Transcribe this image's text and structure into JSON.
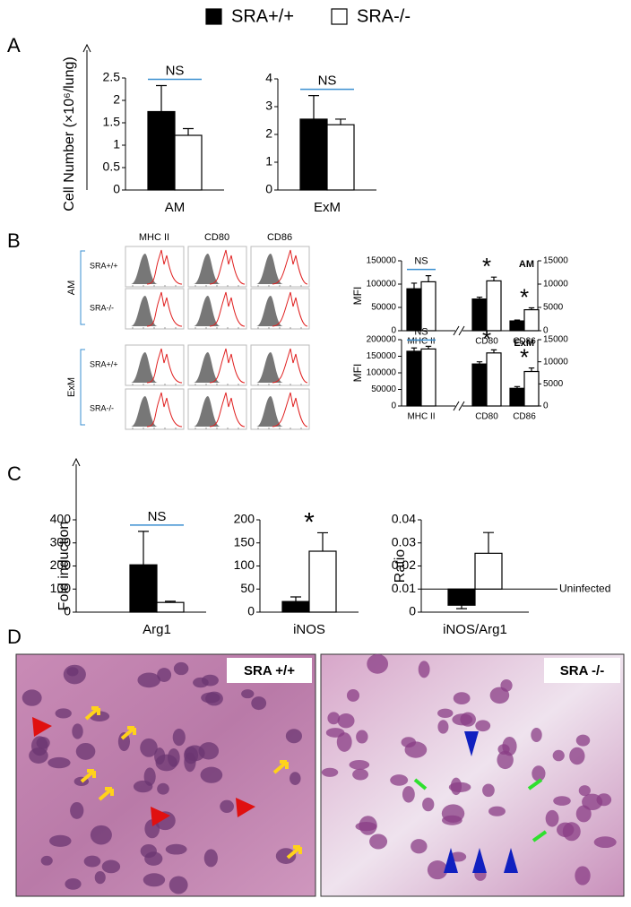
{
  "legend": [
    {
      "name": "SRA+/+",
      "color": "#000000"
    },
    {
      "name": "SRA-/-",
      "color": "#ffffff"
    }
  ],
  "panels": [
    "A",
    "B",
    "C",
    "D"
  ],
  "flow": {
    "columns": [
      "MHC II",
      "CD80",
      "CD86"
    ],
    "groups": [
      {
        "name": "AM",
        "rows": [
          "SRA+/+",
          "SRA-/-"
        ]
      },
      {
        "name": "ExM",
        "rows": [
          "SRA+/+",
          "SRA-/-"
        ]
      }
    ]
  },
  "micrographs": [
    {
      "label": "SRA +/+"
    },
    {
      "label": "SRA -/-"
    }
  ],
  "chart_data": [
    {
      "type": "bar",
      "ylabel": "Cell Number (×10⁶/lung)",
      "categories": [
        "AM"
      ],
      "series": [
        {
          "color": "#000000",
          "values": [
            1.75
          ],
          "errors": [
            0.58
          ]
        },
        {
          "color": "#ffffff",
          "values": [
            1.22
          ],
          "errors": [
            0.15
          ]
        }
      ],
      "ylim": [
        0,
        2.5
      ],
      "yticks": [
        0,
        0.5,
        1,
        1.5,
        2,
        2.5
      ],
      "annotations": [
        {
          "text": "NS",
          "underline": "#3a8fd0"
        }
      ]
    },
    {
      "type": "bar",
      "categories": [
        "ExM"
      ],
      "series": [
        {
          "color": "#000000",
          "values": [
            2.55
          ],
          "errors": [
            0.85
          ]
        },
        {
          "color": "#ffffff",
          "values": [
            2.35
          ],
          "errors": [
            0.2
          ]
        }
      ],
      "ylim": [
        0,
        4
      ],
      "yticks": [
        0,
        1,
        2,
        3,
        4
      ],
      "annotations": [
        {
          "text": "NS",
          "underline": "#3a8fd0"
        }
      ]
    },
    {
      "type": "bar",
      "ylabel": "MFI",
      "label": "AM",
      "categories": [
        "MHC II",
        "CD80",
        "CD86"
      ],
      "series": [
        {
          "color": "#000000",
          "values": [
            90000,
            null,
            null
          ],
          "errors": [
            12000,
            null,
            null
          ]
        },
        {
          "color": "#ffffff",
          "values": [
            105000,
            null,
            null
          ],
          "errors": [
            13000,
            null,
            null
          ]
        },
        {
          "color": "#000000",
          "axis": "y2",
          "values": [
            null,
            6800,
            2100
          ],
          "errors": [
            null,
            400,
            200
          ]
        },
        {
          "color": "#ffffff",
          "axis": "y2",
          "values": [
            null,
            10700,
            4500
          ],
          "errors": [
            null,
            800,
            400
          ]
        }
      ],
      "ylim": [
        0,
        150000
      ],
      "yticks": [
        0,
        50000,
        100000,
        150000
      ],
      "y2lim": [
        0,
        15000
      ],
      "y2ticks": [
        0,
        5000,
        10000,
        15000
      ],
      "annotations": [
        {
          "text": "NS",
          "underline": "#3a8fd0"
        },
        {
          "text": "*"
        },
        {
          "text": "*"
        }
      ]
    },
    {
      "type": "bar",
      "ylabel": "MFI",
      "label": "ExM",
      "categories": [
        "MHC II",
        "CD80",
        "CD86"
      ],
      "series": [
        {
          "color": "#000000",
          "values": [
            165000,
            null,
            null
          ],
          "errors": [
            10000,
            null,
            null
          ]
        },
        {
          "color": "#ffffff",
          "values": [
            172000,
            null,
            null
          ],
          "errors": [
            8000,
            null,
            null
          ]
        },
        {
          "color": "#000000",
          "axis": "y2",
          "values": [
            null,
            9500,
            4000
          ],
          "errors": [
            null,
            500,
            400
          ]
        },
        {
          "color": "#ffffff",
          "axis": "y2",
          "values": [
            null,
            12000,
            7800
          ],
          "errors": [
            null,
            700,
            800
          ]
        }
      ],
      "ylim": [
        0,
        200000
      ],
      "yticks": [
        0,
        50000,
        100000,
        150000,
        200000
      ],
      "y2lim": [
        0,
        15000
      ],
      "y2ticks": [
        0,
        5000,
        10000,
        15000
      ],
      "annotations": [
        {
          "text": "NS",
          "underline": "#3a8fd0"
        },
        {
          "text": "*"
        },
        {
          "text": "*"
        }
      ]
    },
    {
      "type": "bar",
      "ylabel": "Fold induction",
      "categories": [
        "Arg1"
      ],
      "series": [
        {
          "color": "#000000",
          "values": [
            205
          ],
          "errors": [
            145
          ]
        },
        {
          "color": "#ffffff",
          "values": [
            42
          ],
          "errors": [
            5
          ]
        }
      ],
      "ylim": [
        0,
        400
      ],
      "yticks": [
        0,
        100,
        200,
        300,
        400
      ],
      "annotations": [
        {
          "text": "NS",
          "underline": "#3a8fd0"
        }
      ]
    },
    {
      "type": "bar",
      "categories": [
        "iNOS"
      ],
      "series": [
        {
          "color": "#000000",
          "values": [
            23
          ],
          "errors": [
            10
          ]
        },
        {
          "color": "#ffffff",
          "values": [
            132
          ],
          "errors": [
            40
          ]
        }
      ],
      "ylim": [
        0,
        200
      ],
      "yticks": [
        0,
        50,
        100,
        150,
        200
      ],
      "annotations": [
        {
          "text": "*"
        }
      ]
    },
    {
      "type": "bar",
      "ylabel": "Ratio",
      "categories": [
        "iNOS/Arg1"
      ],
      "baseline": 0.01,
      "baseline_label": "Uninfected",
      "series": [
        {
          "color": "#000000",
          "values": [
            0.003
          ],
          "errors": [
            0.0015
          ]
        },
        {
          "color": "#ffffff",
          "values": [
            0.0255
          ],
          "errors": [
            0.009
          ]
        }
      ],
      "ylim": [
        0,
        0.04
      ],
      "yticks": [
        0,
        0.01,
        0.02,
        0.03,
        0.04
      ]
    }
  ]
}
